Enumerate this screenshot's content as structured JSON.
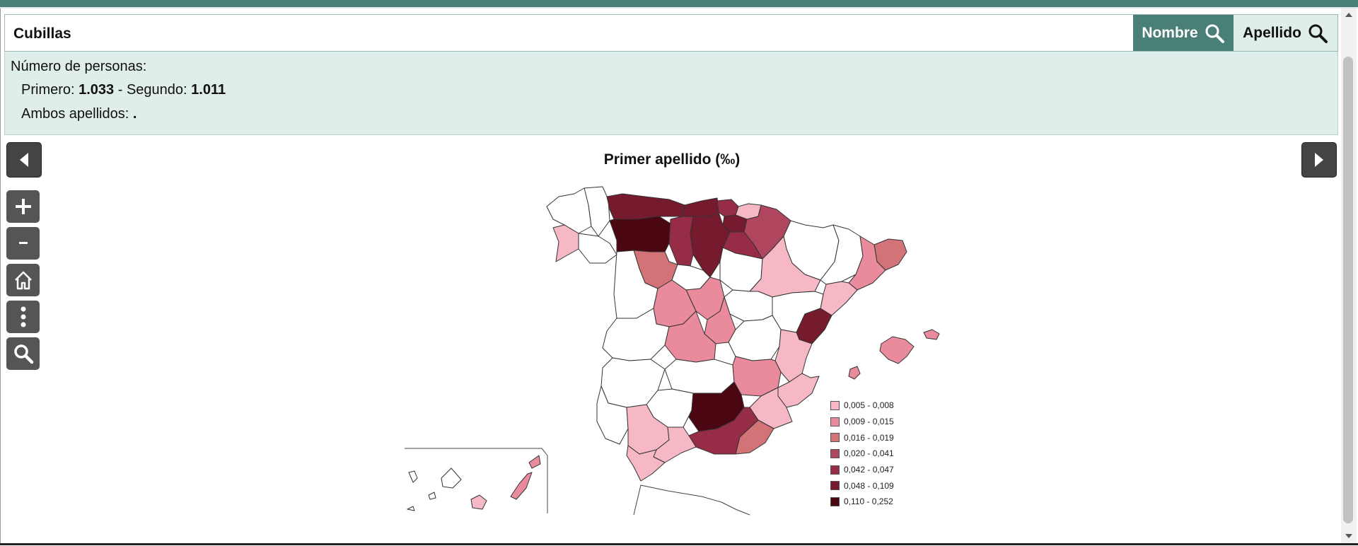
{
  "search": {
    "value": "Cubillas"
  },
  "buttons": {
    "nombre": "Nombre",
    "apellido": "Apellido"
  },
  "info": {
    "title": "Número de personas:",
    "primero_label": "Primero: ",
    "primero_value": "1.033",
    "separator": " - Segundo: ",
    "segundo_value": "1.011",
    "ambos_label": "Ambos apellidos: ",
    "ambos_value": "."
  },
  "map": {
    "title": "Primer apellido (‰)",
    "legend": [
      {
        "label": "0,005 - 0,008",
        "color": "#f5b8c4"
      },
      {
        "label": "0,009 - 0,015",
        "color": "#e98b9c"
      },
      {
        "label": "0,016 - 0,019",
        "color": "#d27378"
      },
      {
        "label": "0,020 - 0,041",
        "color": "#b0465e"
      },
      {
        "label": "0,042 - 0,047",
        "color": "#962c45"
      },
      {
        "label": "0,048 - 0,109",
        "color": "#761a2e"
      },
      {
        "label": "0,110 - 0,252",
        "color": "#4a0712"
      }
    ],
    "regions": [
      {
        "name": "Asturias",
        "class": 5
      },
      {
        "name": "León",
        "class": 6
      },
      {
        "name": "Palencia",
        "class": 4
      },
      {
        "name": "Burgos",
        "class": 5
      },
      {
        "name": "Cantabria",
        "class": 5
      },
      {
        "name": "Vizcaya",
        "class": 4
      },
      {
        "name": "Guipúzcoa",
        "class": 0
      },
      {
        "name": "Álava",
        "class": 5
      },
      {
        "name": "Navarra",
        "class": 3
      },
      {
        "name": "La Rioja",
        "class": 4
      },
      {
        "name": "Zamora",
        "class": 2
      },
      {
        "name": "Pontevedra",
        "class": 0
      },
      {
        "name": "Zaragoza",
        "class": 0
      },
      {
        "name": "Girona",
        "class": 2
      },
      {
        "name": "Barcelona",
        "class": 1
      },
      {
        "name": "Tarragona",
        "class": 0
      },
      {
        "name": "Castellón",
        "class": 5
      },
      {
        "name": "Segovia",
        "class": 1
      },
      {
        "name": "Ávila",
        "class": 1
      },
      {
        "name": "Madrid",
        "class": 1
      },
      {
        "name": "Toledo",
        "class": 1
      },
      {
        "name": "Cuenca",
        "class": 0
      },
      {
        "name": "Valencia",
        "class": 0
      },
      {
        "name": "Albacete",
        "class": 1
      },
      {
        "name": "Alicante",
        "class": 0
      },
      {
        "name": "Murcia",
        "class": 0
      },
      {
        "name": "Jaén",
        "class": 6
      },
      {
        "name": "Granada",
        "class": 4
      },
      {
        "name": "Almería",
        "class": 2
      },
      {
        "name": "Sevilla",
        "class": 0
      },
      {
        "name": "Córdoba",
        "class": 0
      },
      {
        "name": "Cádiz",
        "class": 0
      },
      {
        "name": "Málaga",
        "class": 0
      },
      {
        "name": "Baleares",
        "class": 1
      },
      {
        "name": "Gran Canaria",
        "class": 0
      },
      {
        "name": "Fuerteventura",
        "class": 1
      }
    ]
  }
}
